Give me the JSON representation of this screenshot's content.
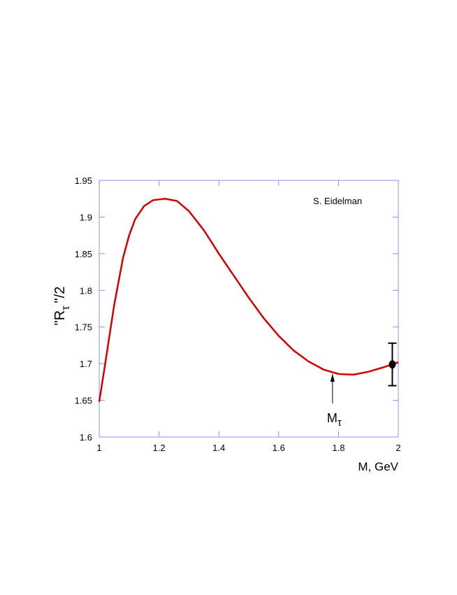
{
  "chart_data": {
    "type": "line",
    "xlabel": "M, GeV",
    "ylabel": {
      "text": "\"R",
      "subscript": "τ",
      "suffix": "\"/2"
    },
    "annotation": {
      "text": "M",
      "subscript": "τ",
      "x": 1.78
    },
    "note": "S. Eidelman",
    "x": [
      1.0,
      1.02,
      1.05,
      1.08,
      1.1,
      1.12,
      1.15,
      1.18,
      1.22,
      1.26,
      1.3,
      1.35,
      1.4,
      1.45,
      1.5,
      1.55,
      1.6,
      1.65,
      1.7,
      1.75,
      1.8,
      1.85,
      1.9,
      1.95,
      2.0
    ],
    "series": [
      {
        "color": "#d40000",
        "values": [
          1.648,
          1.7,
          1.78,
          1.845,
          1.875,
          1.897,
          1.915,
          1.923,
          1.925,
          1.922,
          1.908,
          1.882,
          1.85,
          1.82,
          1.79,
          1.762,
          1.738,
          1.718,
          1.703,
          1.692,
          1.686,
          1.685,
          1.689,
          1.695,
          1.702
        ]
      }
    ],
    "points": [
      {
        "x": 1.98,
        "value": 1.699,
        "error": 0.029,
        "color": "#000000"
      }
    ],
    "xlim": [
      1,
      2
    ],
    "xticks": [
      1,
      1.2,
      1.4,
      1.6,
      1.8,
      2
    ],
    "ylim": [
      1.6,
      1.95
    ],
    "yticks": [
      1.6,
      1.65,
      1.7,
      1.75,
      1.8,
      1.85,
      1.9,
      1.95
    ],
    "frame_color": "#8c8cf0"
  }
}
